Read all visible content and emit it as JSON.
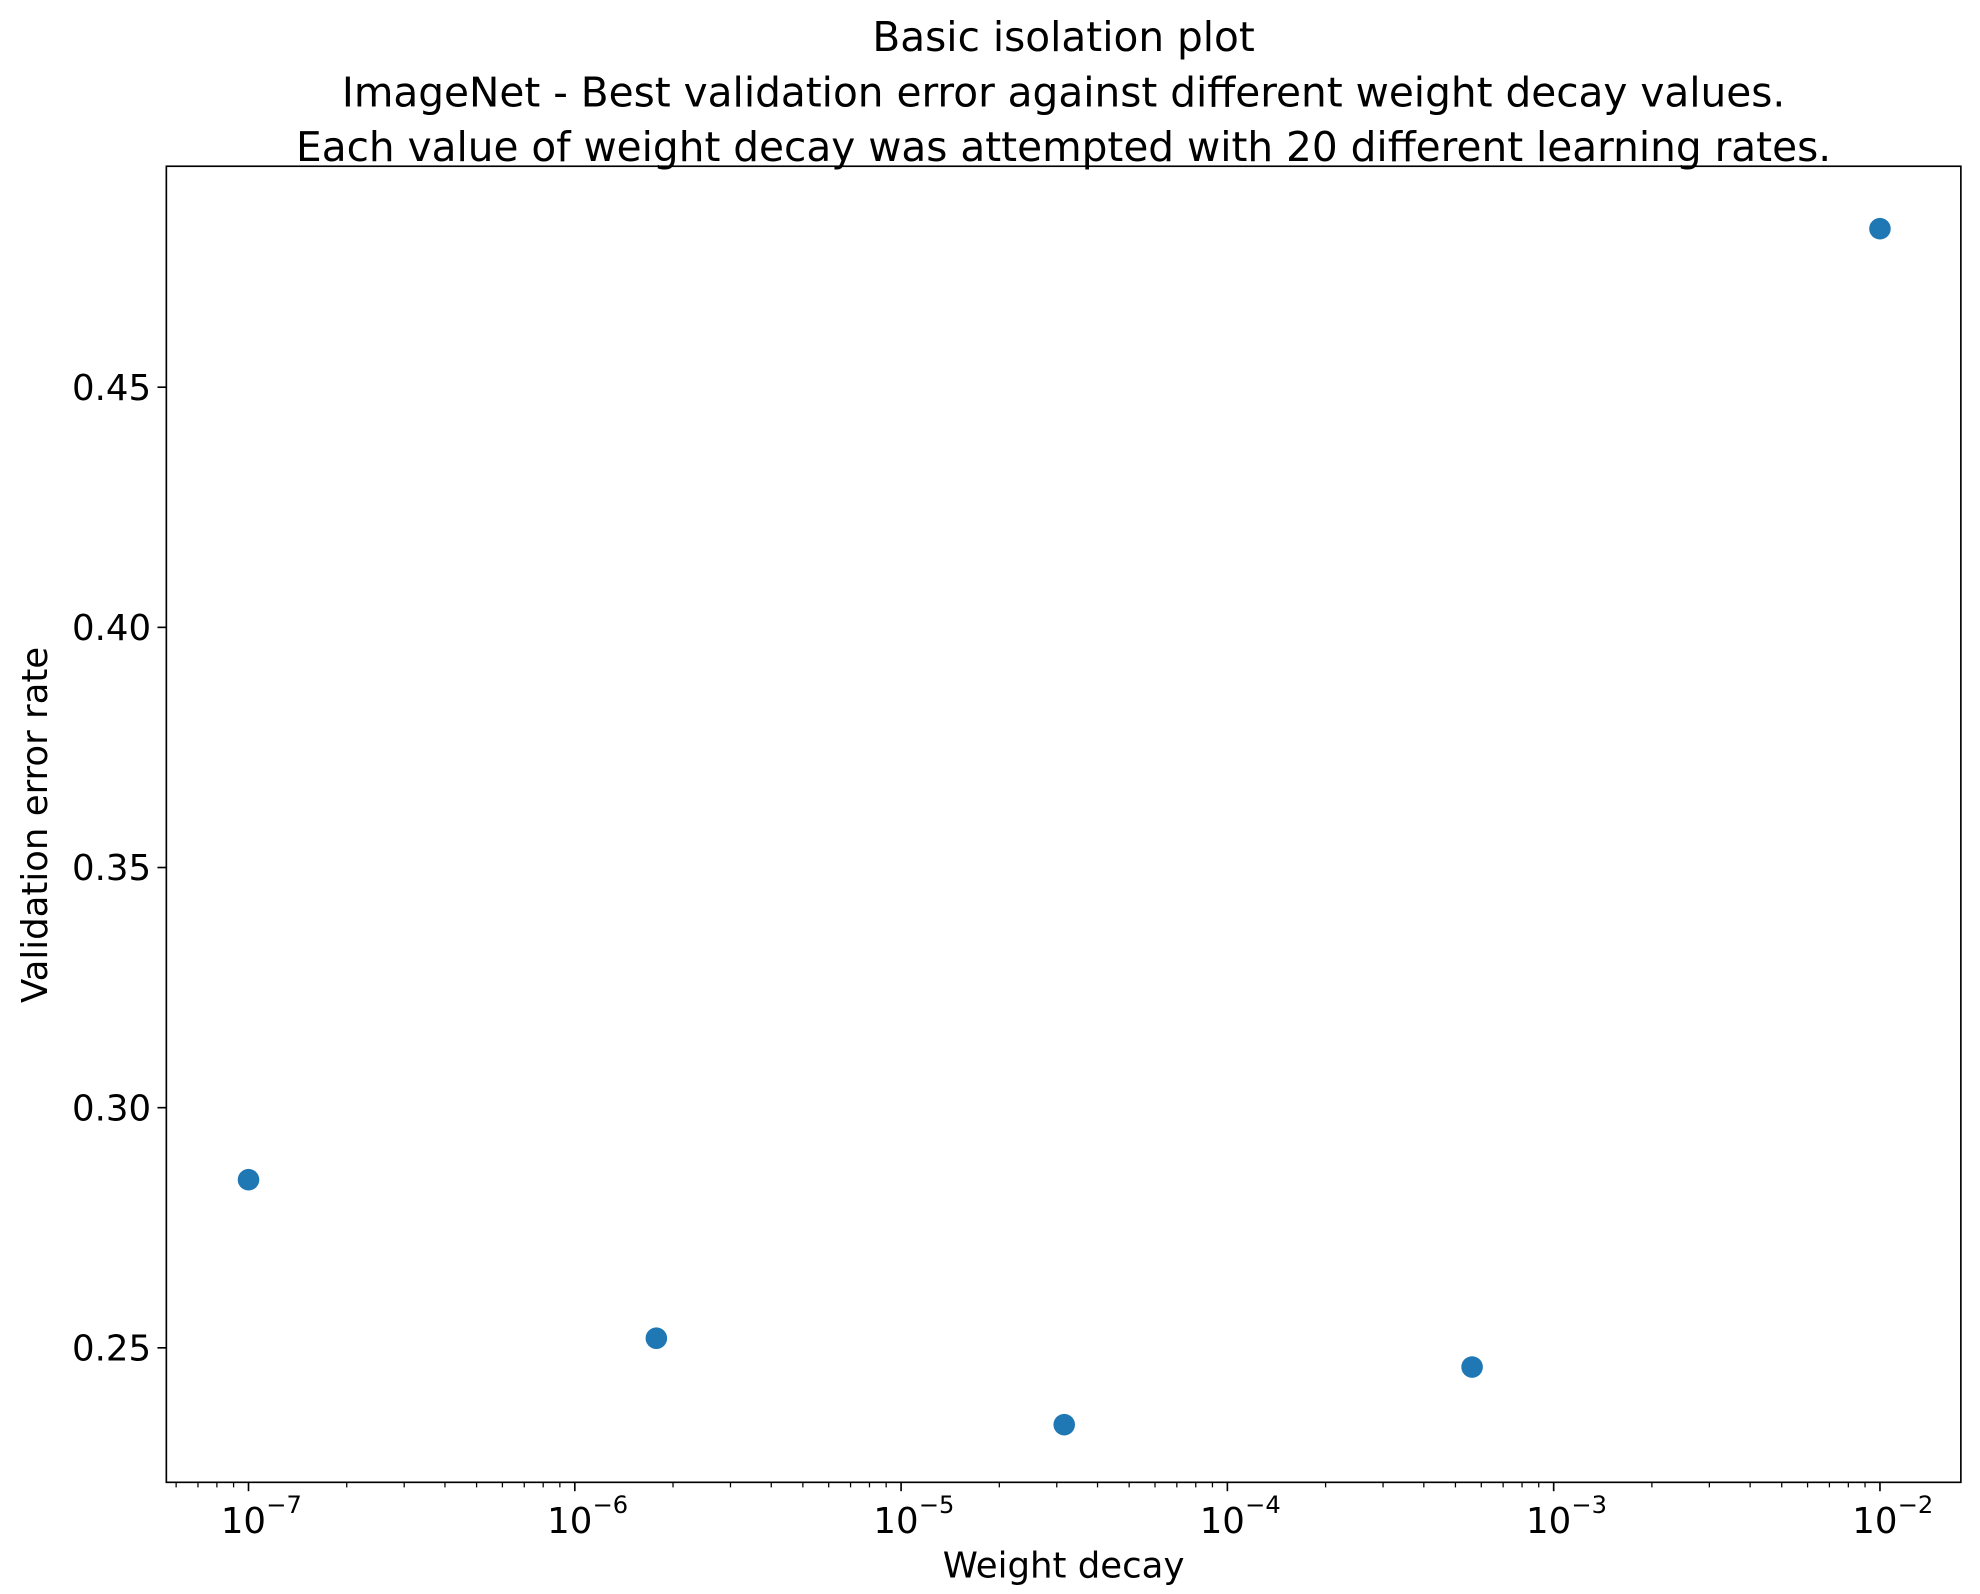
{
  "chart_data": {
    "type": "scatter",
    "title": "Basic isolation plot",
    "subtitle_lines": [
      "ImageNet - Best validation error against different weight decay values.",
      "Each value of weight decay was attempted with 20 different learning rates."
    ],
    "xlabel": "Weight decay",
    "ylabel": "Validation error rate",
    "xscale": "log",
    "xlim": [
      5.6e-08,
      0.0177
    ],
    "ylim": [
      0.222,
      0.496
    ],
    "xticks": [
      {
        "value": 1e-07,
        "base": "10",
        "exp": "−7"
      },
      {
        "value": 1e-06,
        "base": "10",
        "exp": "−6"
      },
      {
        "value": 1e-05,
        "base": "10",
        "exp": "−5"
      },
      {
        "value": 0.0001,
        "base": "10",
        "exp": "−4"
      },
      {
        "value": 0.001,
        "base": "10",
        "exp": "−3"
      },
      {
        "value": 0.01,
        "base": "10",
        "exp": "−2"
      }
    ],
    "yticks": [
      {
        "value": 0.25,
        "label": "0.25"
      },
      {
        "value": 0.3,
        "label": "0.30"
      },
      {
        "value": 0.35,
        "label": "0.35"
      },
      {
        "value": 0.4,
        "label": "0.40"
      },
      {
        "value": 0.45,
        "label": "0.45"
      }
    ],
    "grid": false,
    "marker_color": "#1f77b4",
    "points": [
      {
        "x": 1e-07,
        "y": 0.285
      },
      {
        "x": 1.778e-06,
        "y": 0.252
      },
      {
        "x": 3.162e-05,
        "y": 0.234
      },
      {
        "x": 0.0005623,
        "y": 0.246
      },
      {
        "x": 0.01,
        "y": 0.483
      }
    ]
  }
}
